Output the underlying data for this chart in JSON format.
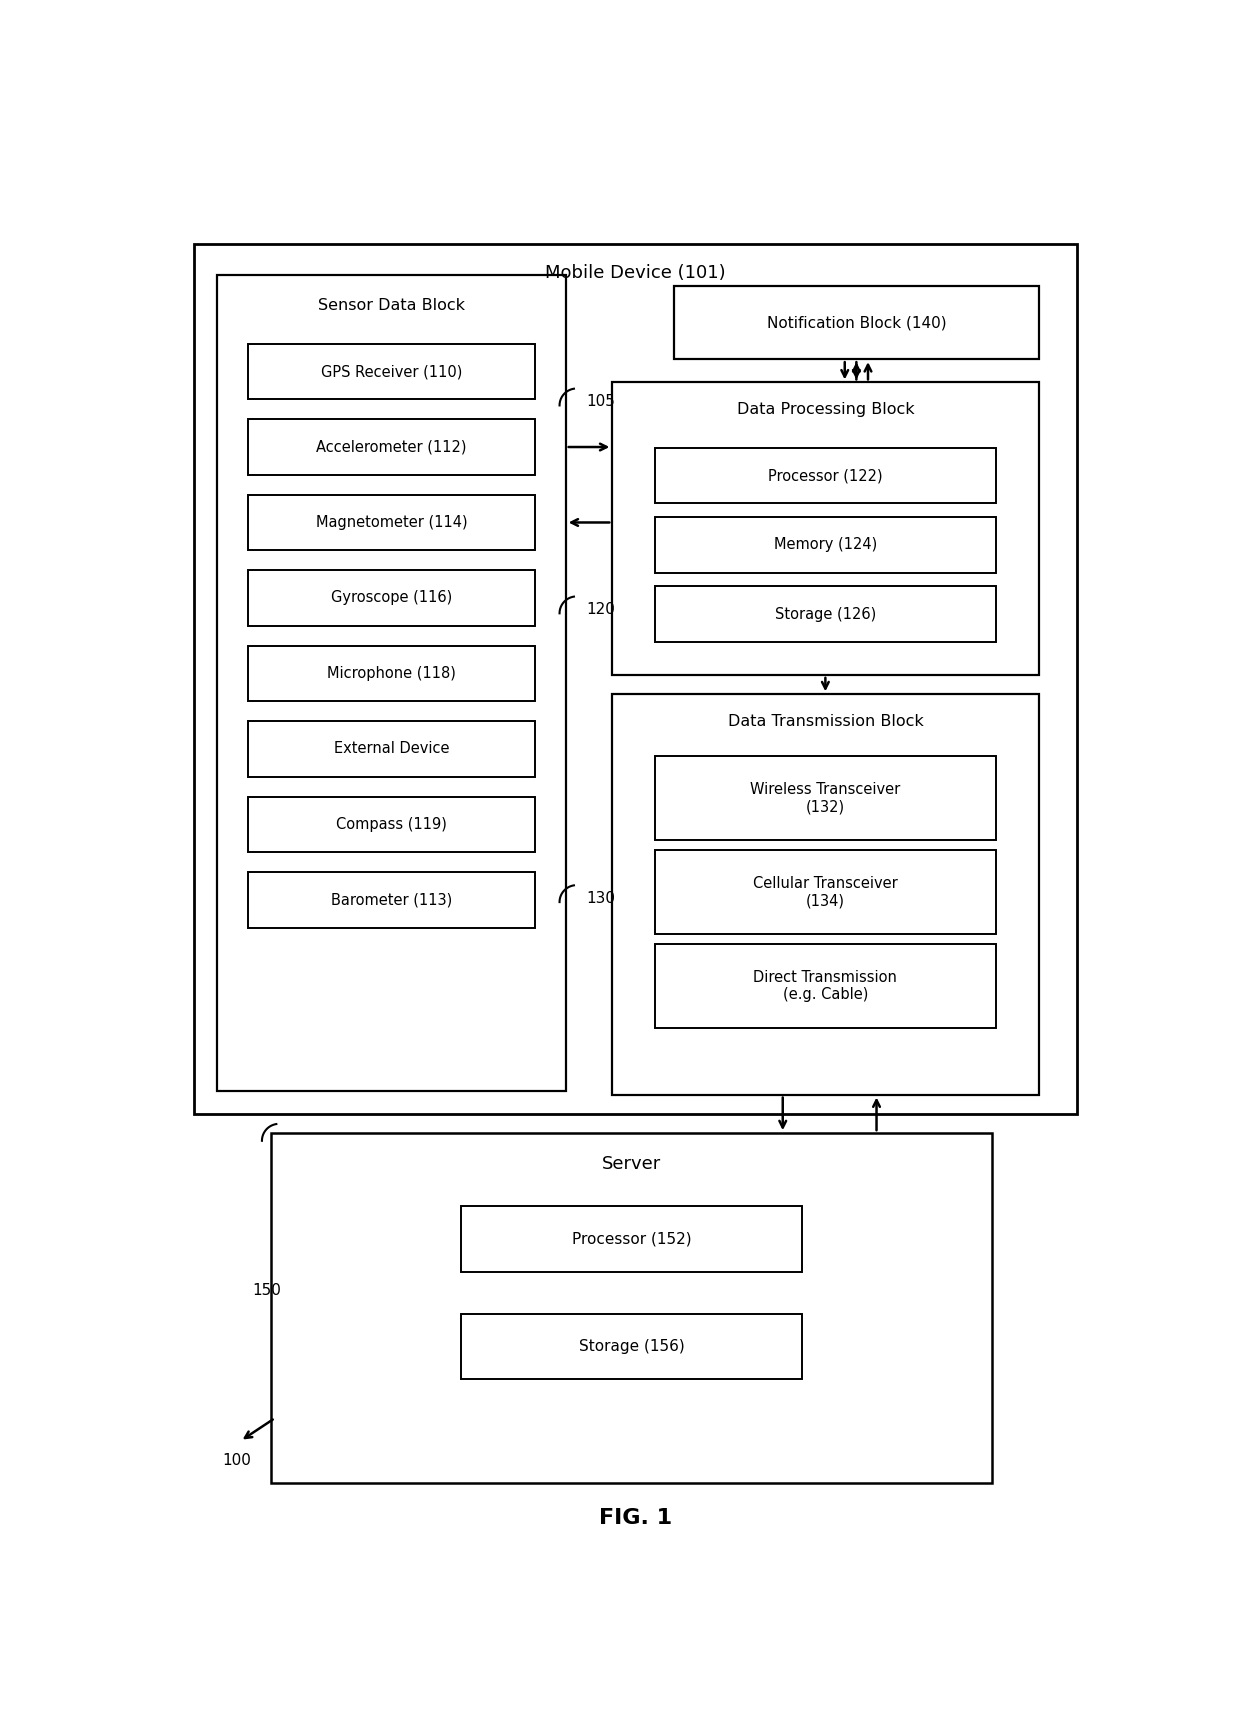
{
  "bg_color": "#ffffff",
  "line_color": "#000000",
  "fig_title": "FIG. 1",
  "mobile_device_label": "Mobile Device (101)",
  "server_label": "Server",
  "sensor_block_label": "Sensor Data Block",
  "data_processing_label": "Data Processing Block",
  "data_transmission_label": "Data Transmission Block",
  "notification_label": "Notification Block (140)",
  "sensor_items": [
    "GPS Receiver (110)",
    "Accelerometer (112)",
    "Magnetometer (114)",
    "Gyroscope (116)",
    "Microphone (118)",
    "External Device",
    "Compass (119)",
    "Barometer (113)"
  ],
  "processing_items": [
    "Processor (122)",
    "Memory (124)",
    "Storage (126)"
  ],
  "transmission_items": [
    "Wireless Transceiver\n(132)",
    "Cellular Transceiver\n(134)",
    "Direct Transmission\n(e.g. Cable)"
  ],
  "server_items": [
    "Processor (152)",
    "Storage (156)"
  ],
  "label_105": "105",
  "label_120": "120",
  "label_130": "130",
  "label_150": "150",
  "label_100": "100"
}
